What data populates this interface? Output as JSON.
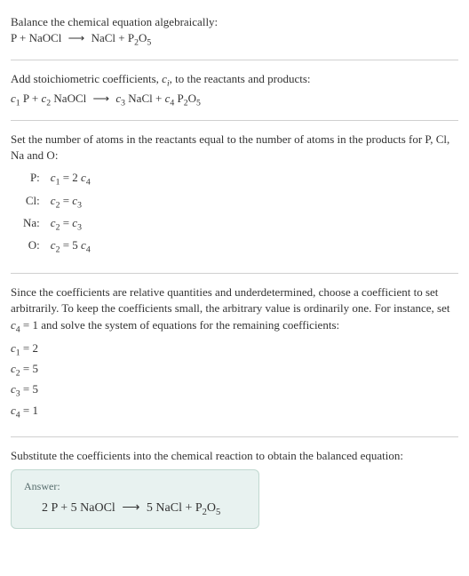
{
  "colors": {
    "text": "#333333",
    "divider": "#d0d0d0",
    "answer_bg": "#e8f2f0",
    "answer_border": "#c0d8d0",
    "answer_label": "#556b6b"
  },
  "intro_text": "Balance the chemical equation algebraically:",
  "intro_eq_left": "P + NaOCl",
  "intro_eq_right": "NaCl + P",
  "o5": "O",
  "sub2": "2",
  "sub5": "5",
  "step1_text_a": "Add stoichiometric coefficients, ",
  "step1_text_b": ", to the reactants and products:",
  "c_i": "c",
  "i_sub": "i",
  "step1_eq": {
    "c1": "c",
    "s1": "1",
    "p1": " P + ",
    "c2": "c",
    "s2": "2",
    "p2": " NaOCl",
    "c3": "c",
    "s3": "3",
    "p3": " NaCl + ",
    "c4": "c",
    "s4": "4",
    "p4": " P"
  },
  "step2_text": "Set the number of atoms in the reactants equal to the number of atoms in the products for P, Cl, Na and O:",
  "atom_rows": [
    {
      "label": "P:",
      "lhs_c": "c",
      "lhs_s": "1",
      "eq": " = 2 ",
      "rhs_c": "c",
      "rhs_s": "4"
    },
    {
      "label": "Cl:",
      "lhs_c": "c",
      "lhs_s": "2",
      "eq": " = ",
      "rhs_c": "c",
      "rhs_s": "3"
    },
    {
      "label": "Na:",
      "lhs_c": "c",
      "lhs_s": "2",
      "eq": " = ",
      "rhs_c": "c",
      "rhs_s": "3"
    },
    {
      "label": "O:",
      "lhs_c": "c",
      "lhs_s": "2",
      "eq": " = 5 ",
      "rhs_c": "c",
      "rhs_s": "4"
    }
  ],
  "step3_text_a": "Since the coefficients are relative quantities and underdetermined, choose a coefficient to set arbitrarily. To keep the coefficients small, the arbitrary value is ordinarily one. For instance, set ",
  "step3_c4": "c",
  "step3_c4_sub": "4",
  "step3_eq1": " = 1",
  "step3_text_b": " and solve the system of equations for the remaining coefficients:",
  "coeffs": [
    {
      "c": "c",
      "s": "1",
      "v": " = 2"
    },
    {
      "c": "c",
      "s": "2",
      "v": " = 5"
    },
    {
      "c": "c",
      "s": "3",
      "v": " = 5"
    },
    {
      "c": "c",
      "s": "4",
      "v": " = 1"
    }
  ],
  "step4_text": "Substitute the coefficients into the chemical reaction to obtain the balanced equation:",
  "answer_label": "Answer:",
  "answer_eq_left": "2 P + 5 NaOCl",
  "answer_eq_right": "5 NaCl + P",
  "arrow": "⟶"
}
